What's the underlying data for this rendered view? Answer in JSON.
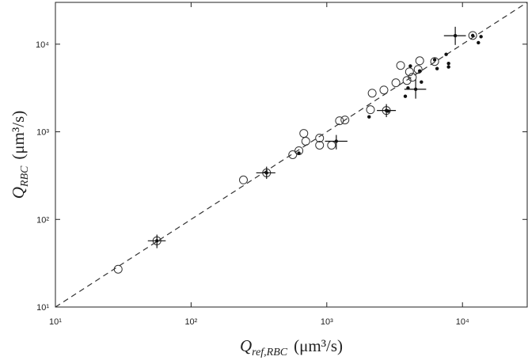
{
  "chart_data": {
    "type": "scatter",
    "xlabel": {
      "main": "Q",
      "sub": "ref,RBC",
      "unit": "(μm³/s)"
    },
    "ylabel": {
      "main": "Q",
      "sub": "RBC",
      "unit": "(μm³/s)"
    },
    "xlim": [
      10,
      30000
    ],
    "ylim": [
      10,
      30000
    ],
    "log_x": true,
    "log_y": true,
    "identity_line": true,
    "xticks": [
      {
        "value": 10,
        "label": "10¹"
      },
      {
        "value": 100,
        "label": "10²"
      },
      {
        "value": 1000,
        "label": "10³"
      },
      {
        "value": 10000,
        "label": "10⁴"
      }
    ],
    "yticks": [
      {
        "value": 10,
        "label": "10¹"
      },
      {
        "value": 100,
        "label": "10²"
      },
      {
        "value": 1000,
        "label": "10³"
      },
      {
        "value": 10000,
        "label": "10⁴"
      }
    ],
    "series": [
      {
        "marker": "open-circle",
        "color": "#333333",
        "x": [
          29,
          56,
          243,
          360,
          561,
          623,
          677,
          700,
          885,
          885,
          1084,
          1241,
          1361,
          2099,
          2160,
          2636,
          2750,
          3230,
          3500,
          3900,
          4070,
          4270,
          4710,
          4840,
          6240,
          11900
        ],
        "values": [
          27,
          57,
          282,
          340,
          548,
          608,
          959,
          780,
          847,
          703,
          703,
          1337,
          1365,
          1787,
          2760,
          3000,
          1750,
          3625,
          5715,
          3853,
          4840,
          4190,
          5150,
          6470,
          6340,
          12560
        ]
      },
      {
        "marker": "dot",
        "color": "#111111",
        "x": [
          623,
          2050,
          2830,
          3790,
          3970,
          4130,
          4840,
          4980,
          6240,
          6500,
          7580,
          7900,
          7900,
          11900,
          13100,
          13700
        ],
        "values": [
          570,
          1480,
          1720,
          2540,
          3160,
          5630,
          4950,
          3700,
          6640,
          5260,
          7650,
          6030,
          5500,
          12560,
          10400,
          12200
        ]
      },
      {
        "marker": "error-cross",
        "color": "#111111",
        "x": [
          56,
          360,
          1175,
          2750,
          4520,
          8850
        ],
        "values": [
          57,
          340,
          780,
          1750,
          3060,
          12500
        ],
        "x_low": [
          48,
          302,
          970,
          2340,
          3730,
          7300
        ],
        "x_high": [
          65,
          418,
          1420,
          3230,
          5400,
          10600
        ],
        "y_low": [
          47,
          290,
          630,
          1470,
          2390,
          9800
        ],
        "y_high": [
          67,
          400,
          920,
          2070,
          3980,
          15800
        ]
      }
    ]
  }
}
